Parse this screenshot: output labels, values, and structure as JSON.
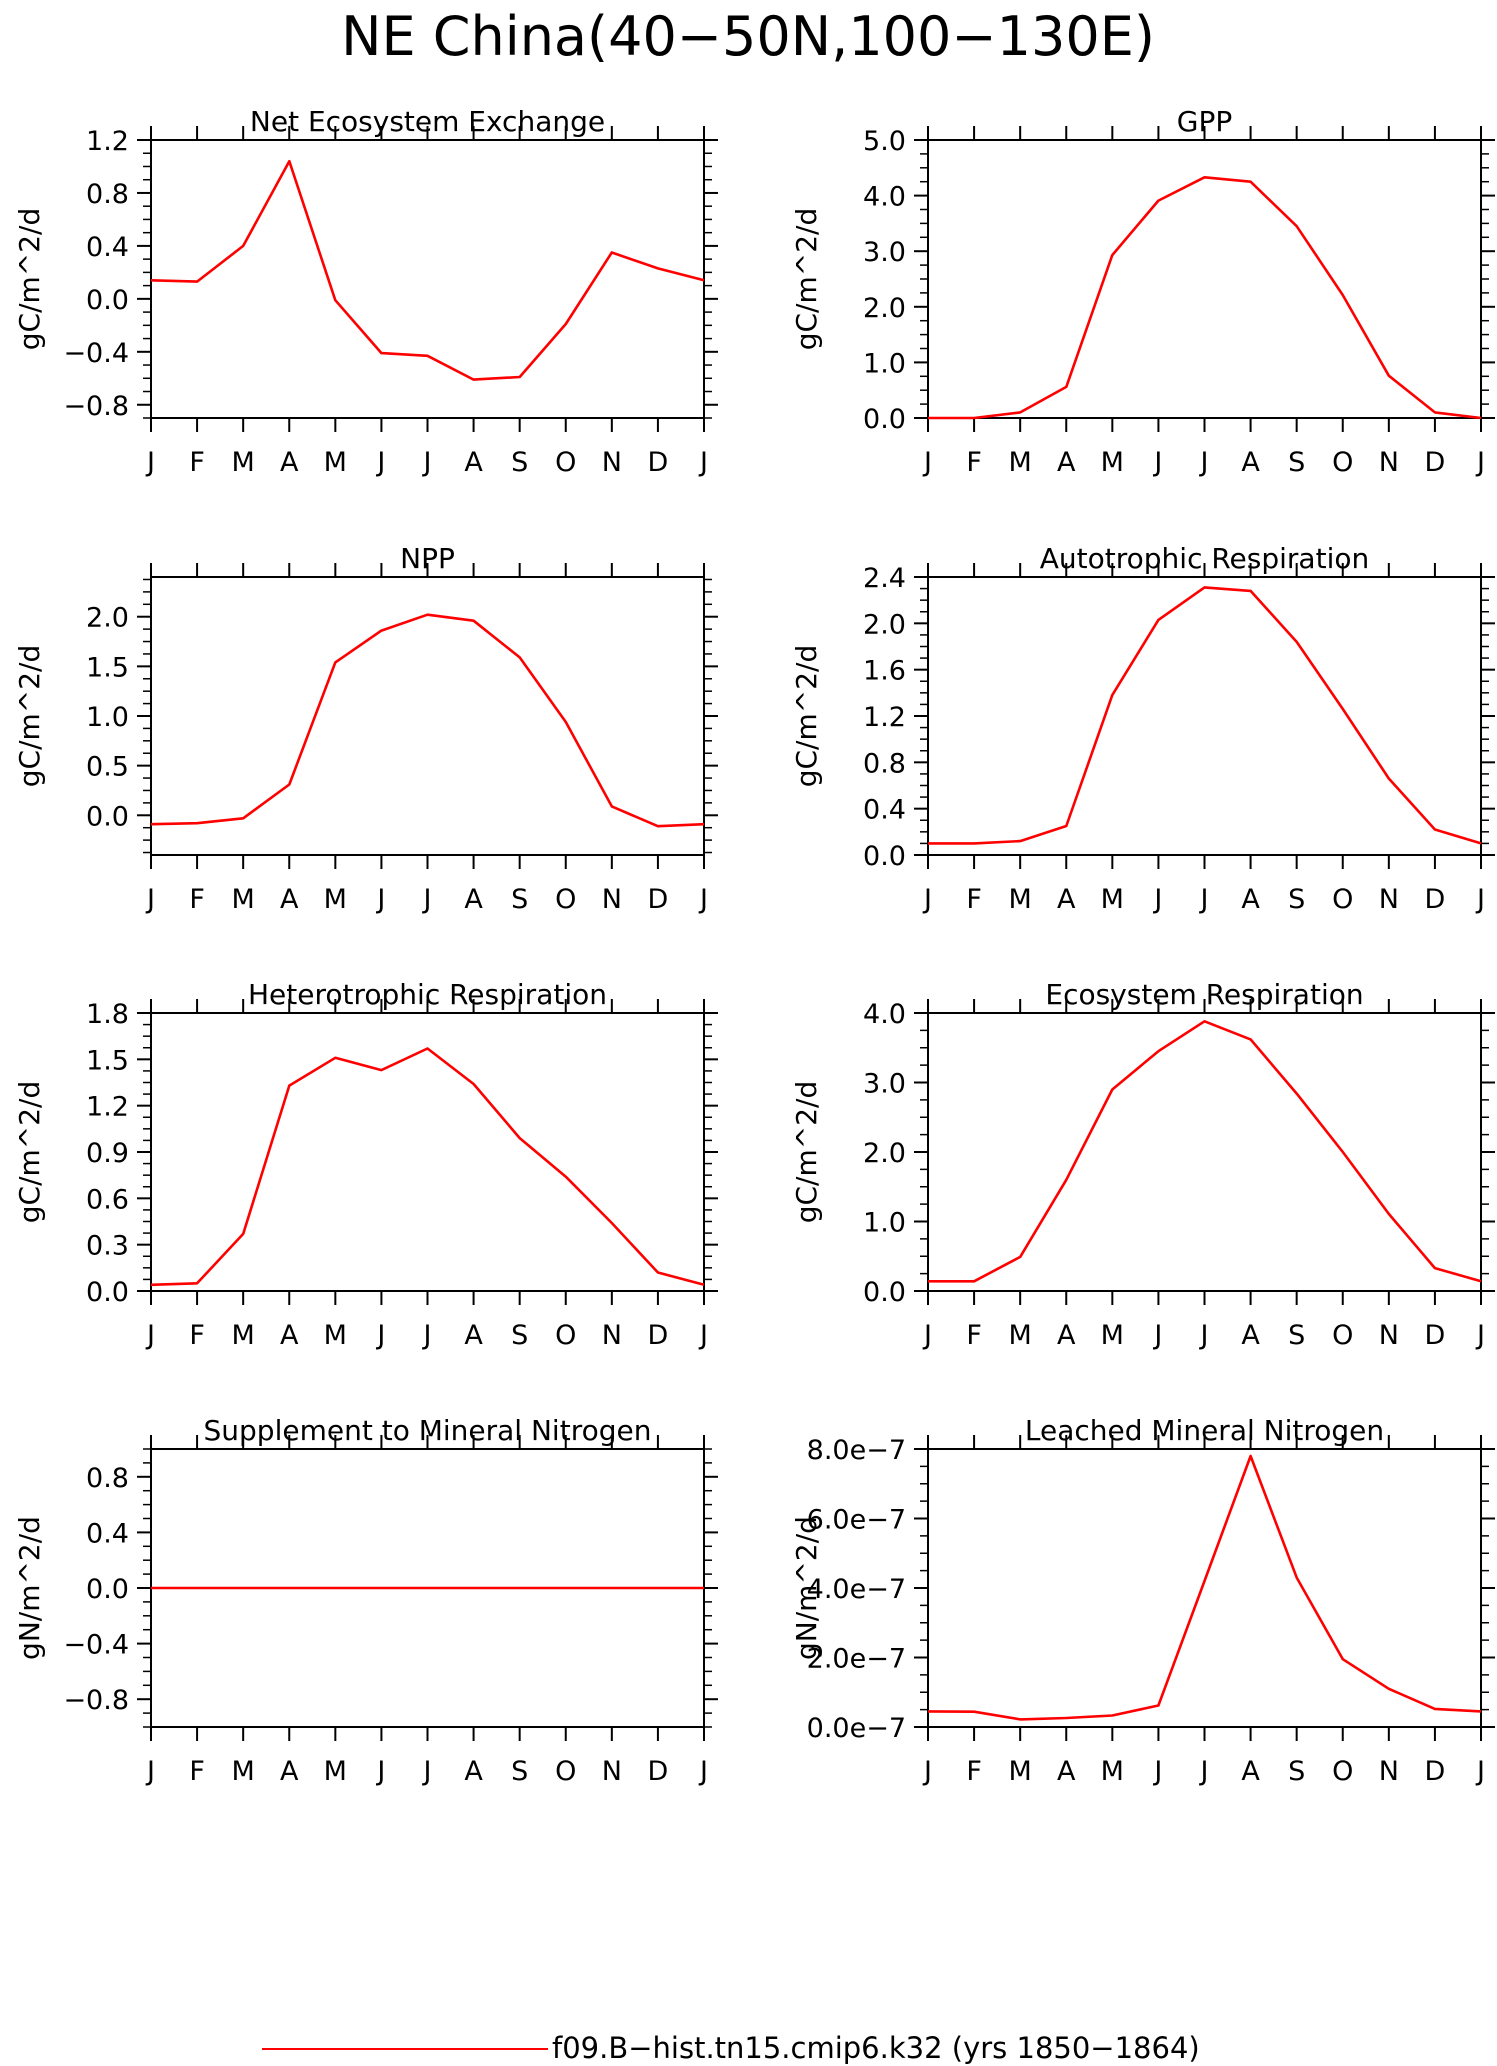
{
  "figure": {
    "title": "NE China(40−50N,100−130E)",
    "legend": {
      "label": "f09.B−hist.tn15.cmip6.k32 (yrs 1850−1864)",
      "line_color": "#ff0000",
      "placement": "bottom-center"
    },
    "line_color": "#ff0000"
  },
  "chart_data": [
    {
      "type": "line",
      "title": "Net Ecosystem Exchange",
      "ylabel": "gC/m^2/d",
      "x": [
        "J",
        "F",
        "M",
        "A",
        "M",
        "J",
        "J",
        "A",
        "S",
        "O",
        "N",
        "D",
        "J"
      ],
      "series": [
        {
          "values": [
            0.14,
            0.13,
            0.4,
            1.04,
            -0.01,
            -0.41,
            -0.43,
            -0.61,
            -0.59,
            -0.19,
            0.35,
            0.23,
            0.14
          ]
        }
      ],
      "ylim": [
        -0.9,
        1.2
      ],
      "yticks": [
        -0.8,
        -0.4,
        0.0,
        0.4,
        0.8,
        1.2
      ],
      "yticklabels": [
        "−0.8",
        "−0.4",
        "0.0",
        "0.4",
        "0.8",
        "1.2"
      ],
      "grid": false
    },
    {
      "type": "line",
      "title": "GPP",
      "ylabel": "gC/m^2/d",
      "x": [
        "J",
        "F",
        "M",
        "A",
        "M",
        "J",
        "J",
        "A",
        "S",
        "O",
        "N",
        "D",
        "J"
      ],
      "series": [
        {
          "values": [
            0.0,
            0.0,
            0.1,
            0.56,
            2.93,
            3.91,
            4.33,
            4.25,
            3.45,
            2.21,
            0.76,
            0.1,
            0.0
          ]
        }
      ],
      "ylim": [
        0.0,
        5.0
      ],
      "yticks": [
        0.0,
        1.0,
        2.0,
        3.0,
        4.0,
        5.0
      ],
      "yticklabels": [
        "0.0",
        "1.0",
        "2.0",
        "3.0",
        "4.0",
        "5.0"
      ],
      "grid": false
    },
    {
      "type": "line",
      "title": "NPP",
      "ylabel": "gC/m^2/d",
      "x": [
        "J",
        "F",
        "M",
        "A",
        "M",
        "J",
        "J",
        "A",
        "S",
        "O",
        "N",
        "D",
        "J"
      ],
      "series": [
        {
          "values": [
            -0.09,
            -0.08,
            -0.03,
            0.31,
            1.54,
            1.86,
            2.02,
            1.96,
            1.59,
            0.94,
            0.09,
            -0.11,
            -0.09
          ]
        }
      ],
      "ylim": [
        -0.4,
        2.4
      ],
      "yticks": [
        0.0,
        0.5,
        1.0,
        1.5,
        2.0
      ],
      "yticklabels": [
        "0.0",
        "0.5",
        "1.0",
        "1.5",
        "2.0"
      ],
      "grid": false
    },
    {
      "type": "line",
      "title": "Autotrophic Respiration",
      "ylabel": "gC/m^2/d",
      "x": [
        "J",
        "F",
        "M",
        "A",
        "M",
        "J",
        "J",
        "A",
        "S",
        "O",
        "N",
        "D",
        "J"
      ],
      "series": [
        {
          "values": [
            0.1,
            0.1,
            0.12,
            0.25,
            1.38,
            2.03,
            2.31,
            2.28,
            1.84,
            1.26,
            0.66,
            0.22,
            0.1
          ]
        }
      ],
      "ylim": [
        0.0,
        2.4
      ],
      "yticks": [
        0.0,
        0.4,
        0.8,
        1.2,
        1.6,
        2.0,
        2.4
      ],
      "yticklabels": [
        "0.0",
        "0.4",
        "0.8",
        "1.2",
        "1.6",
        "2.0",
        "2.4"
      ],
      "grid": false
    },
    {
      "type": "line",
      "title": "Heterotrophic Respiration",
      "ylabel": "gC/m^2/d",
      "x": [
        "J",
        "F",
        "M",
        "A",
        "M",
        "J",
        "J",
        "A",
        "S",
        "O",
        "N",
        "D",
        "J"
      ],
      "series": [
        {
          "values": [
            0.04,
            0.05,
            0.37,
            1.33,
            1.51,
            1.43,
            1.57,
            1.34,
            0.99,
            0.74,
            0.44,
            0.12,
            0.04
          ]
        }
      ],
      "ylim": [
        0.0,
        1.8
      ],
      "yticks": [
        0.0,
        0.3,
        0.6,
        0.9,
        1.2,
        1.5,
        1.8
      ],
      "yticklabels": [
        "0.0",
        "0.3",
        "0.6",
        "0.9",
        "1.2",
        "1.5",
        "1.8"
      ],
      "grid": false
    },
    {
      "type": "line",
      "title": "Ecosystem Respiration",
      "ylabel": "gC/m^2/d",
      "x": [
        "J",
        "F",
        "M",
        "A",
        "M",
        "J",
        "J",
        "A",
        "S",
        "O",
        "N",
        "D",
        "J"
      ],
      "series": [
        {
          "values": [
            0.14,
            0.14,
            0.49,
            1.6,
            2.9,
            3.45,
            3.88,
            3.62,
            2.84,
            2.0,
            1.11,
            0.33,
            0.14
          ]
        }
      ],
      "ylim": [
        0.0,
        4.0
      ],
      "yticks": [
        0.0,
        1.0,
        2.0,
        3.0,
        4.0
      ],
      "yticklabels": [
        "0.0",
        "1.0",
        "2.0",
        "3.0",
        "4.0"
      ],
      "grid": false
    },
    {
      "type": "line",
      "title": "Supplement to Mineral Nitrogen",
      "ylabel": "gN/m^2/d",
      "x": [
        "J",
        "F",
        "M",
        "A",
        "M",
        "J",
        "J",
        "A",
        "S",
        "O",
        "N",
        "D",
        "J"
      ],
      "series": [
        {
          "values": [
            0,
            0,
            0,
            0,
            0,
            0,
            0,
            0,
            0,
            0,
            0,
            0,
            0
          ]
        }
      ],
      "ylim": [
        -1.0,
        1.0
      ],
      "yticks": [
        -0.8,
        -0.4,
        0.0,
        0.4,
        0.8
      ],
      "yticklabels": [
        "−0.8",
        "−0.4",
        "0.0",
        "0.4",
        "0.8"
      ],
      "grid": false
    },
    {
      "type": "line",
      "title": "Leached Mineral Nitrogen",
      "ylabel": "gN/m^2/d",
      "x": [
        "J",
        "F",
        "M",
        "A",
        "M",
        "J",
        "J",
        "A",
        "S",
        "O",
        "N",
        "D",
        "J"
      ],
      "series": [
        {
          "values": [
            4.5e-08,
            4.4e-08,
            2.2e-08,
            2.6e-08,
            3.3e-08,
            6.2e-08,
            4.2e-07,
            7.8e-07,
            4.3e-07,
            1.95e-07,
            1.1e-07,
            5.2e-08,
            4.5e-08
          ]
        }
      ],
      "ylim": [
        0.0,
        8e-07
      ],
      "yticks": [
        0.0,
        2e-07,
        4e-07,
        6e-07,
        8e-07
      ],
      "yticklabels": [
        "0.0e−7",
        "2.0e−7",
        "4.0e−7",
        "6.0e−7",
        "8.0e−7"
      ],
      "grid": false
    }
  ]
}
